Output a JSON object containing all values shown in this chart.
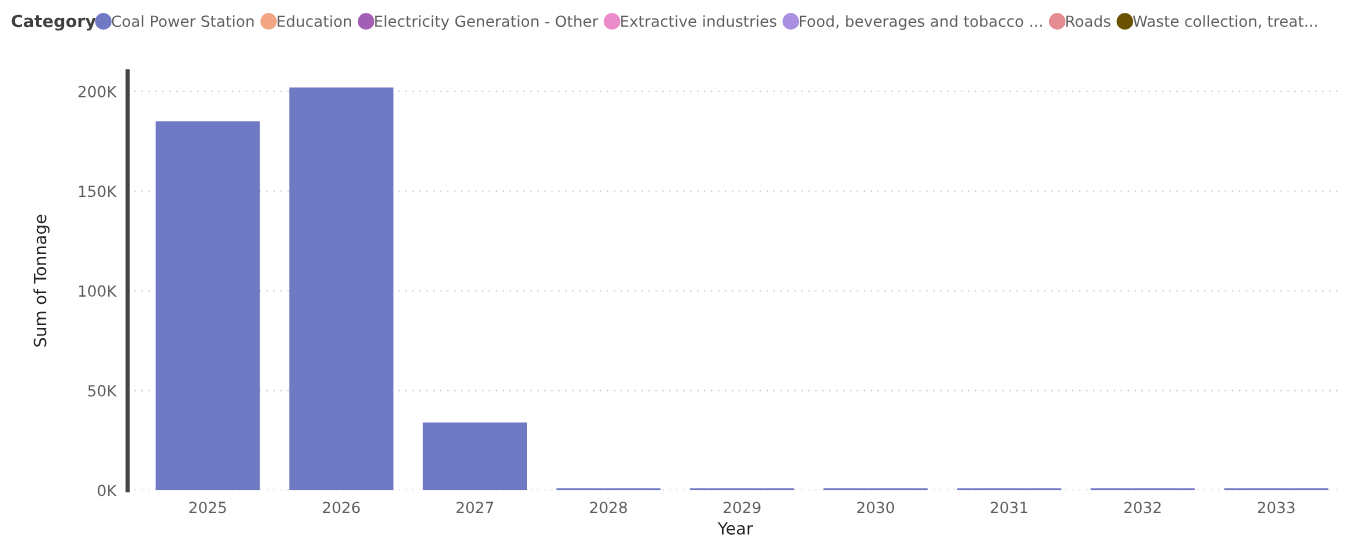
{
  "chart_data": {
    "type": "bar",
    "xlabel": "Year",
    "ylabel": "Sum of Tonnage",
    "legend_title": "Category",
    "legend": "top left",
    "categories": [
      "2025",
      "2026",
      "2027",
      "2028",
      "2029",
      "2030",
      "2031",
      "2032",
      "2033"
    ],
    "series": [
      {
        "name": "Coal Power Station",
        "color": "#7079c4",
        "values": [
          185000,
          202000,
          34000,
          1000,
          1000,
          1000,
          1000,
          1000,
          1000
        ]
      },
      {
        "name": "Education",
        "color": "#f2a684",
        "values": [
          null,
          null,
          null,
          null,
          null,
          null,
          null,
          null,
          null
        ]
      },
      {
        "name": "Electricity Generation - Other",
        "color": "#a25fb5",
        "values": [
          null,
          null,
          null,
          null,
          null,
          null,
          null,
          null,
          null
        ]
      },
      {
        "name": "Extractive industries",
        "color": "#ea8ccc",
        "values": [
          null,
          null,
          null,
          null,
          null,
          null,
          null,
          null,
          null
        ]
      },
      {
        "name": "Food, beverages and tobacco ...",
        "color": "#a98fdf",
        "values": [
          null,
          null,
          null,
          null,
          null,
          null,
          null,
          null,
          null
        ]
      },
      {
        "name": "Roads",
        "color": "#e58b91",
        "values": [
          null,
          null,
          null,
          null,
          null,
          null,
          null,
          null,
          null
        ]
      },
      {
        "name": "Waste collection, treat...",
        "color": "#6b5200",
        "values": [
          null,
          null,
          null,
          null,
          null,
          null,
          null,
          null,
          null
        ]
      }
    ],
    "ylim": [
      0,
      210000
    ],
    "yticks": [
      {
        "value": 0,
        "label": "0K"
      },
      {
        "value": 50000,
        "label": "50K"
      },
      {
        "value": 100000,
        "label": "100K"
      },
      {
        "value": 150000,
        "label": "150K"
      },
      {
        "value": 200000,
        "label": "200K"
      }
    ],
    "grid": "y"
  }
}
